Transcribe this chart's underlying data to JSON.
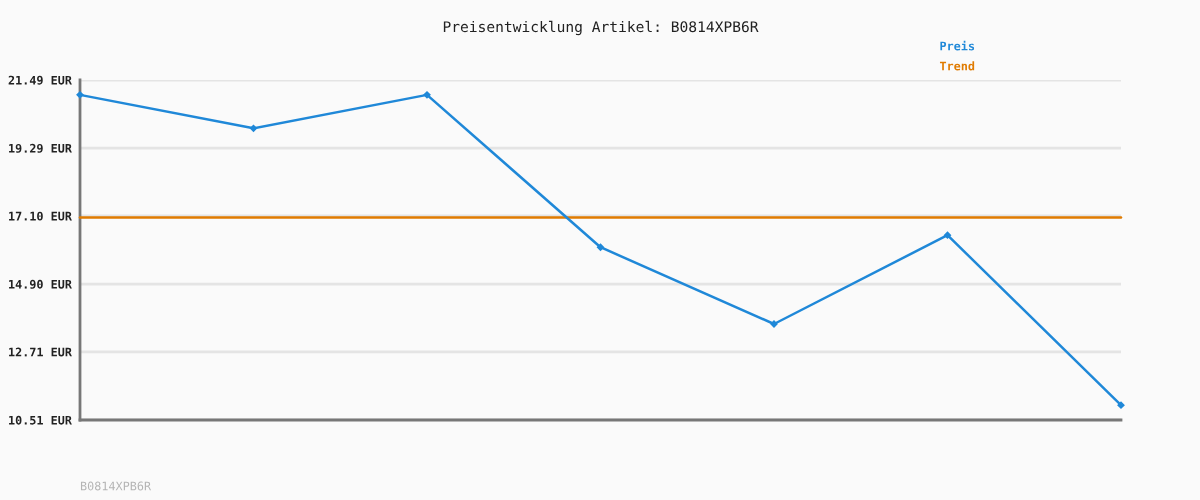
{
  "chart_data": {
    "type": "line",
    "title": "Preisentwicklung Artikel: B0814XPB6R",
    "categories": [
      null,
      null,
      null,
      null,
      null,
      null,
      null
    ],
    "series": [
      {
        "name": "Preis",
        "color": "#1f88d8",
        "marker": "diamond",
        "values": [
          21.01,
          19.93,
          21.01,
          16.09,
          13.61,
          16.48,
          10.99
        ]
      },
      {
        "name": "Trend",
        "color": "#e07b00",
        "marker": "none",
        "values": [
          17.05,
          17.05,
          17.05,
          17.05,
          17.05,
          17.05,
          17.05
        ]
      }
    ],
    "ylim": [
      10.51,
      21.49
    ],
    "yticks": [
      {
        "value": 10.51,
        "label": "10.51 EUR"
      },
      {
        "value": 12.71,
        "label": "12.71 EUR"
      },
      {
        "value": 14.9,
        "label": "14.90 EUR"
      },
      {
        "value": 17.1,
        "label": "17.10 EUR"
      },
      {
        "value": 19.29,
        "label": "19.29 EUR"
      },
      {
        "value": 21.49,
        "label": "21.49 EUR"
      }
    ],
    "grid": "y",
    "legend": "top right",
    "tick_labels": "y",
    "annotations": [
      "B0814XPB6R"
    ]
  }
}
